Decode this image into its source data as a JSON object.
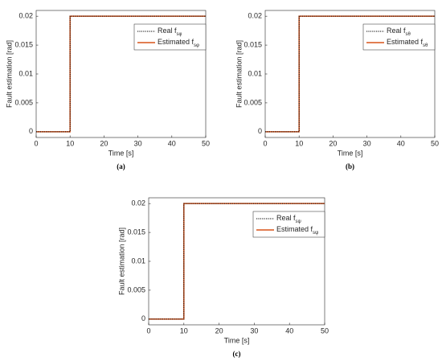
{
  "chart_data": [
    {
      "type": "line",
      "caption": "(a)",
      "xlabel": "Time [s]",
      "ylabel": "Fault estimation [rad]",
      "x": [
        0,
        10,
        10,
        50
      ],
      "xlim": [
        0,
        50
      ],
      "xticks": [
        0,
        10,
        20,
        30,
        40,
        50
      ],
      "ylim": [
        -0.001,
        0.021
      ],
      "yticks": [
        0,
        0.005,
        0.01,
        0.015,
        0.02
      ],
      "grid": false,
      "legend": "northeast",
      "series": [
        {
          "name": "Estimated f",
          "name_sub": "sφ",
          "color": "#d95319",
          "style": "solid",
          "values": [
            0,
            0,
            0.02,
            0.02
          ]
        },
        {
          "name": "Real f",
          "name_sub": "sφ",
          "color": "#000000",
          "style": "dotted",
          "values": [
            0,
            0,
            0.02,
            0.02
          ]
        }
      ]
    },
    {
      "type": "line",
      "caption": "(b)",
      "xlabel": "Time [s]",
      "ylabel": "Fault estimation [rad]",
      "x": [
        0,
        10,
        10,
        50
      ],
      "xlim": [
        0,
        50
      ],
      "xticks": [
        0,
        10,
        20,
        30,
        40,
        50
      ],
      "ylim": [
        -0.001,
        0.021
      ],
      "yticks": [
        0,
        0.005,
        0.01,
        0.015,
        0.02
      ],
      "grid": false,
      "legend": "northeast",
      "series": [
        {
          "name": "Estimated f",
          "name_sub": "sθ",
          "color": "#d95319",
          "style": "solid",
          "values": [
            0,
            0,
            0.02,
            0.02
          ]
        },
        {
          "name": "Real f",
          "name_sub": "sθ",
          "color": "#000000",
          "style": "dotted",
          "values": [
            0,
            0,
            0.02,
            0.02
          ]
        }
      ]
    },
    {
      "type": "line",
      "caption": "(c)",
      "xlabel": "Time [s]",
      "ylabel": "Fault estimation [rad]",
      "x": [
        0,
        10,
        10,
        50
      ],
      "xlim": [
        0,
        50
      ],
      "xticks": [
        0,
        10,
        20,
        30,
        40,
        50
      ],
      "ylim": [
        -0.001,
        0.021
      ],
      "yticks": [
        0,
        0.005,
        0.01,
        0.015,
        0.02
      ],
      "grid": false,
      "legend": "northeast",
      "series": [
        {
          "name": "Estimated f",
          "name_sub": "sψ",
          "color": "#d95319",
          "style": "solid",
          "values": [
            0,
            0,
            0.02,
            0.02
          ]
        },
        {
          "name": "Real f",
          "name_sub": "sψ",
          "color": "#000000",
          "style": "dotted",
          "values": [
            0,
            0,
            0.02,
            0.02
          ]
        }
      ]
    }
  ]
}
